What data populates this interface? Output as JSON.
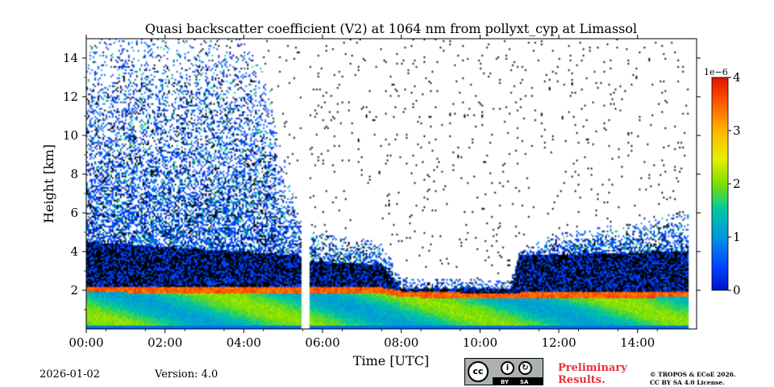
{
  "chart_data": {
    "type": "heatmap",
    "title": "Quasi backscatter coefficient (V2) at 1064 nm from pollyxt_cyp at Limassol",
    "xlabel": "Time [UTC]",
    "ylabel": "Height [km]",
    "xlim_hours": [
      0,
      15.5
    ],
    "ylim_km": [
      0,
      15
    ],
    "x_ticks": [
      {
        "value": 0,
        "label": "00:00"
      },
      {
        "value": 2,
        "label": "02:00"
      },
      {
        "value": 4,
        "label": "04:00"
      },
      {
        "value": 6,
        "label": "06:00"
      },
      {
        "value": 8,
        "label": "08:00"
      },
      {
        "value": 10,
        "label": "10:00"
      },
      {
        "value": 12,
        "label": "12:00"
      },
      {
        "value": 14,
        "label": "14:00"
      }
    ],
    "y_ticks": [
      {
        "value": 2,
        "label": "2"
      },
      {
        "value": 4,
        "label": "4"
      },
      {
        "value": 6,
        "label": "6"
      },
      {
        "value": 8,
        "label": "8"
      },
      {
        "value": 10,
        "label": "10"
      },
      {
        "value": 12,
        "label": "12"
      },
      {
        "value": 14,
        "label": "14"
      }
    ],
    "colorbar": {
      "range": [
        0,
        4
      ],
      "scale_label": "1e−6",
      "ticks": [
        {
          "value": 0,
          "label": "0"
        },
        {
          "value": 1,
          "label": "1"
        },
        {
          "value": 2,
          "label": "2"
        },
        {
          "value": 3,
          "label": "3"
        },
        {
          "value": 4,
          "label": "4"
        }
      ]
    },
    "data_gap_hours": [
      5.45,
      5.65
    ],
    "no_data_after_hours": 15.3,
    "boundary_layer_top_km": [
      [
        0,
        2.05
      ],
      [
        2,
        2.0
      ],
      [
        4,
        2.0
      ],
      [
        5.4,
        2.0
      ],
      [
        5.7,
        2.0
      ],
      [
        7.5,
        2.0
      ],
      [
        8.0,
        1.8
      ],
      [
        10,
        1.7
      ],
      [
        12,
        1.75
      ],
      [
        14,
        1.75
      ],
      [
        15,
        1.8
      ]
    ],
    "noisy_signal_top_km": [
      [
        0,
        15
      ],
      [
        2,
        15
      ],
      [
        4,
        15
      ],
      [
        4.6,
        13
      ],
      [
        5,
        9
      ],
      [
        5.4,
        6
      ],
      [
        5.7,
        5
      ],
      [
        7.5,
        4.5
      ],
      [
        8.0,
        2.6
      ],
      [
        9.4,
        2.6
      ],
      [
        10.8,
        2.6
      ],
      [
        11,
        4
      ],
      [
        12,
        5
      ],
      [
        14,
        5.5
      ],
      [
        15,
        6
      ]
    ],
    "dense_layer_top_km": [
      [
        0,
        4.5
      ],
      [
        5.4,
        3.8
      ],
      [
        5.7,
        3.5
      ],
      [
        7.5,
        3.3
      ],
      [
        8.0,
        2.1
      ],
      [
        10.8,
        2.1
      ],
      [
        11,
        3.8
      ],
      [
        15,
        4.0
      ]
    ],
    "unit_note": "coefficient values scaled by 1e-6"
  },
  "footer": {
    "date": "2026-01-02",
    "version": "Version: 4.0",
    "preliminary_line1": "Preliminary",
    "preliminary_line2": "Results.",
    "license_line1": "© TROPOS & ECoE 2026.",
    "license_line2": "CC BY SA 4.0 License.",
    "cc_badge_text": "cc",
    "cc_by": "BY",
    "cc_sa": "SA"
  }
}
